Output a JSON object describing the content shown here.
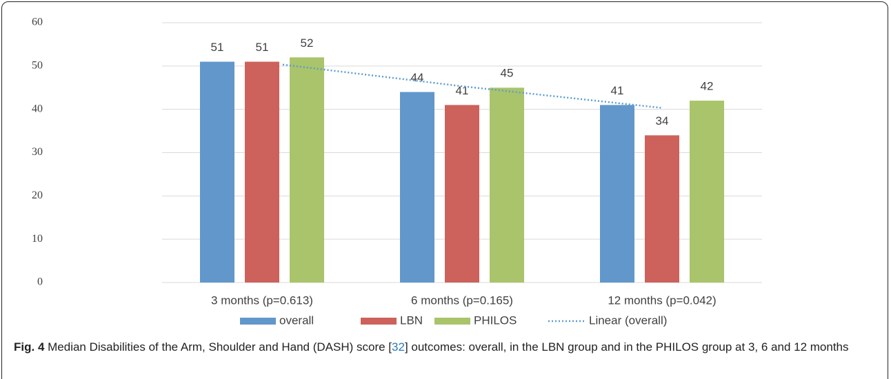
{
  "chart_data": {
    "type": "bar",
    "categories": [
      "3 months (p=0.613)",
      "6 months (p=0.165)",
      "12 months (p=0.042)"
    ],
    "series": [
      {
        "name": "overall",
        "color": "#6197cb",
        "values": [
          51,
          44,
          41
        ]
      },
      {
        "name": "LBN",
        "color": "#cc625b",
        "values": [
          51,
          41,
          34
        ]
      },
      {
        "name": "PHILOS",
        "color": "#a9c46a",
        "values": [
          52,
          45,
          42
        ]
      }
    ],
    "trendline": {
      "name": "Linear (overall)",
      "series": 0,
      "color": "#5b9bd5",
      "style": "dotted"
    },
    "ylim": [
      0,
      60
    ],
    "yticks": [
      0,
      10,
      20,
      30,
      40,
      50,
      60
    ],
    "grid": true,
    "legend": "bottom",
    "data_labels": true
  },
  "caption": {
    "label": "Fig. 4",
    "text_before": " Median Disabilities of the Arm, Shoulder and Hand (DASH) score [",
    "ref": "32",
    "text_after": "] outcomes: overall, in the LBN group and in the PHILOS group at 3, 6 and 12 months"
  }
}
